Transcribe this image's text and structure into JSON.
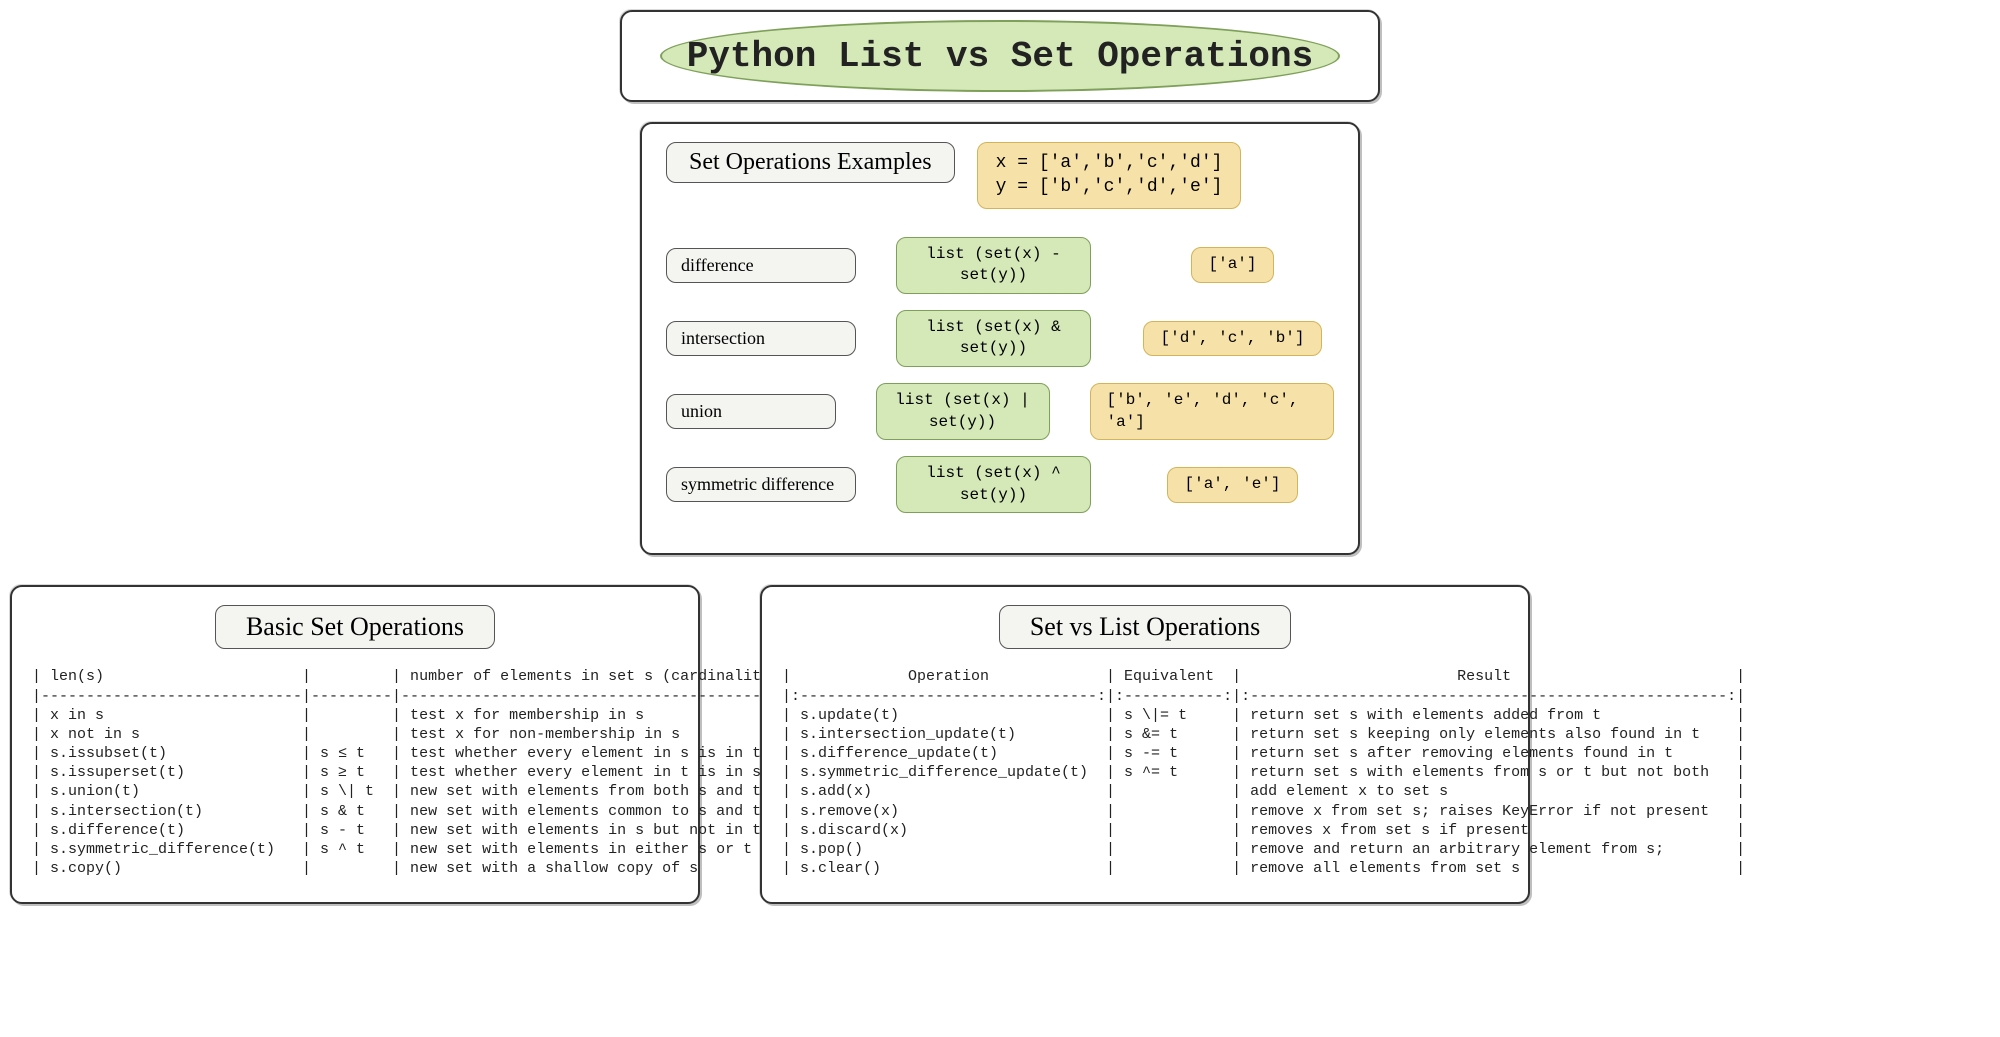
{
  "colors": {
    "green_fill": "#d4e8b8",
    "green_border": "#7fa05a",
    "orange_fill": "#f6e1a8",
    "orange_border": "#d4b45a",
    "grey_fill": "#f4f4f0",
    "grey_border": "#555555",
    "panel_border": "#333333",
    "text": "#222222"
  },
  "title": "Python List vs Set Operations",
  "examples": {
    "header": "Set Operations Examples",
    "setup_line1": "x = ['a','b','c','d']",
    "setup_line2": "y = ['b','c','d','e']",
    "rows": [
      {
        "op": "difference",
        "code": "list (set(x) - set(y))",
        "result": "['a']"
      },
      {
        "op": "intersection",
        "code": "list (set(x) & set(y))",
        "result": "['d', 'c', 'b']"
      },
      {
        "op": "union",
        "code": "list (set(x) | set(y))",
        "result": "['b', 'e', 'd', 'c', 'a']"
      },
      {
        "op": "symmetric difference",
        "code": "list (set(x) ^ set(y))",
        "result": "['a', 'e']"
      }
    ]
  },
  "basic_table": {
    "title": "Basic Set Operations",
    "rows": [
      {
        "op": "len(s)",
        "eq": "",
        "desc": "number of elements in set s (cardinality)"
      },
      {
        "op": "x in s",
        "eq": "",
        "desc": "test x for membership in s"
      },
      {
        "op": "x not in s",
        "eq": "",
        "desc": "test x for non-membership in s"
      },
      {
        "op": "s.issubset(t)",
        "eq": "s ≤ t",
        "desc": "test whether every element in s is in t"
      },
      {
        "op": "s.issuperset(t)",
        "eq": "s ≥ t",
        "desc": "test whether every element in t is in s"
      },
      {
        "op": "s.union(t)",
        "eq": "s \\| t",
        "desc": "new set with elements from both s and t"
      },
      {
        "op": "s.intersection(t)",
        "eq": "s & t",
        "desc": "new set with elements common to s and t"
      },
      {
        "op": "s.difference(t)",
        "eq": "s - t",
        "desc": "new set with elements in s but not in t"
      },
      {
        "op": "s.symmetric_difference(t)",
        "eq": "s ^ t",
        "desc": "new set with elements in either s or t but not both"
      },
      {
        "op": "s.copy()",
        "eq": "",
        "desc": "new set with a shallow copy of s"
      }
    ],
    "col_widths": {
      "op": 27,
      "eq": 7,
      "desc": 51
    },
    "highlight": {
      "top_row": 1,
      "bottom_row": 9,
      "col": "op"
    }
  },
  "setvslist_table": {
    "title": "Set vs List Operations",
    "headers": {
      "op": "Operation",
      "eq": "Equivalent",
      "desc": "Result"
    },
    "rows": [
      {
        "op": "s.update(t)",
        "eq": "s \\|= t",
        "desc": "return set s with elements added from t"
      },
      {
        "op": "s.intersection_update(t)",
        "eq": "s &= t",
        "desc": "return set s keeping only elements also found in t"
      },
      {
        "op": "s.difference_update(t)",
        "eq": "s -= t",
        "desc": "return set s after removing elements found in t"
      },
      {
        "op": "s.symmetric_difference_update(t)",
        "eq": "s ^= t",
        "desc": "return set s with elements from s or t but not both"
      },
      {
        "op": "s.add(x)",
        "eq": "",
        "desc": "add element x to set s"
      },
      {
        "op": "s.remove(x)",
        "eq": "",
        "desc": "remove x from set s; raises KeyError if not present"
      },
      {
        "op": "s.discard(x)",
        "eq": "",
        "desc": "removes x from set s if present"
      },
      {
        "op": "s.pop()",
        "eq": "",
        "desc": "remove and return an arbitrary element from s;"
      },
      {
        "op": "s.clear()",
        "eq": "",
        "desc": "remove all elements from set s"
      }
    ],
    "col_widths": {
      "op": 33,
      "eq": 11,
      "desc": 53
    },
    "highlight": {
      "top_row": 0,
      "bottom_row": 8,
      "col": "op"
    }
  }
}
